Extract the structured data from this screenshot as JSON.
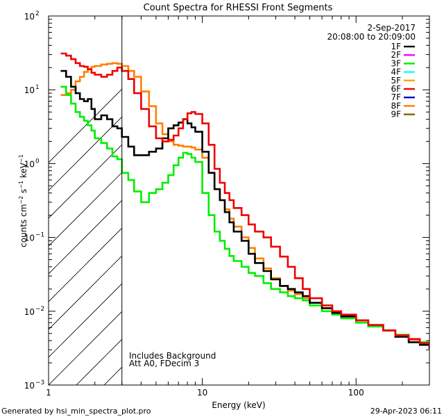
{
  "chart_data": {
    "type": "line",
    "title": "Count Spectra for RHESSI Front Segments",
    "xlabel": "Energy (keV)",
    "ylabel": "counts cm^-2 s^-1 keV^-1",
    "xscale": "log",
    "yscale": "log",
    "xlim": [
      1,
      300
    ],
    "ylim": [
      0.001,
      100
    ],
    "x_ticks_major": [
      {
        "value": 1,
        "label": "1"
      },
      {
        "value": 10,
        "label": "10"
      },
      {
        "value": 100,
        "label": "100"
      }
    ],
    "y_ticks_major": [
      {
        "value": 0.001,
        "label": "10^-3"
      },
      {
        "value": 0.01,
        "label": "10^-2"
      },
      {
        "value": 0.1,
        "label": "10^-1"
      },
      {
        "value": 1,
        "label": "10^0"
      },
      {
        "value": 10,
        "label": "10^1"
      },
      {
        "value": 100,
        "label": "10^2"
      }
    ],
    "date_label": "2-Sep-2017",
    "time_range_label": "20:08:00 to 20:09:00",
    "shaded_region": {
      "x_from": 1,
      "x_to": 3,
      "style": "hatched"
    },
    "annotations": [
      "Includes Background",
      "Att A0, FDecim 3"
    ],
    "legend": [
      {
        "name": "1F",
        "color": "#000000"
      },
      {
        "name": "2F",
        "color": "#ff00ff"
      },
      {
        "name": "3F",
        "color": "#00ee00"
      },
      {
        "name": "4F",
        "color": "#00ffff"
      },
      {
        "name": "5F",
        "color": "#ffa500"
      },
      {
        "name": "6F",
        "color": "#ee0000"
      },
      {
        "name": "7F",
        "color": "#0000cc"
      },
      {
        "name": "8F",
        "color": "#ff7f00"
      },
      {
        "name": "9F",
        "color": "#806000"
      }
    ],
    "series": [
      {
        "name": "1F",
        "color": "#000000",
        "x": [
          1.2,
          1.3,
          1.4,
          1.5,
          1.6,
          1.7,
          1.8,
          1.9,
          2.0,
          2.2,
          2.4,
          2.6,
          2.8,
          3.0,
          3.3,
          3.6,
          4.0,
          4.5,
          5.0,
          5.5,
          6.0,
          6.5,
          7.0,
          7.5,
          8.0,
          8.5,
          9.0,
          10,
          11,
          12,
          13,
          14,
          15,
          16,
          18,
          20,
          22,
          25,
          28,
          32,
          36,
          40,
          45,
          50,
          60,
          70,
          80,
          100,
          120,
          150,
          180,
          220,
          260,
          300
        ],
        "y": [
          18,
          15,
          11,
          9,
          7.5,
          7,
          7.5,
          5.5,
          4,
          4.5,
          4,
          3.2,
          3,
          2.3,
          1.7,
          1.3,
          1.3,
          1.45,
          1.6,
          2.2,
          3,
          3.3,
          3.6,
          4,
          3.5,
          3.1,
          2.7,
          1.45,
          0.75,
          0.45,
          0.32,
          0.22,
          0.16,
          0.12,
          0.09,
          0.06,
          0.045,
          0.035,
          0.027,
          0.022,
          0.02,
          0.018,
          0.016,
          0.013,
          0.011,
          0.0095,
          0.0085,
          0.0075,
          0.0065,
          0.0055,
          0.0045,
          0.0038,
          0.0035,
          0.0031
        ]
      },
      {
        "name": "3F",
        "color": "#00ee00",
        "x": [
          1.2,
          1.3,
          1.4,
          1.5,
          1.6,
          1.7,
          1.8,
          1.9,
          2.0,
          2.2,
          2.4,
          2.6,
          2.8,
          3.0,
          3.3,
          3.6,
          4.0,
          4.5,
          5.0,
          5.5,
          6.0,
          6.5,
          7.0,
          7.5,
          8.0,
          8.5,
          9.0,
          10,
          11,
          12,
          13,
          14,
          15,
          16,
          18,
          20,
          22,
          25,
          28,
          32,
          36,
          40,
          45,
          50,
          60,
          70,
          80,
          100,
          120,
          150,
          180,
          220,
          260,
          300
        ],
        "y": [
          11,
          8.5,
          6.5,
          5,
          4.3,
          3.8,
          3.3,
          2.8,
          2.2,
          1.9,
          1.6,
          1.25,
          1.15,
          0.75,
          0.6,
          0.42,
          0.3,
          0.4,
          0.45,
          0.55,
          0.7,
          0.95,
          1.2,
          1.4,
          1.35,
          1.2,
          1.05,
          0.4,
          0.2,
          0.12,
          0.09,
          0.07,
          0.056,
          0.048,
          0.04,
          0.033,
          0.03,
          0.024,
          0.02,
          0.018,
          0.016,
          0.015,
          0.014,
          0.012,
          0.01,
          0.009,
          0.008,
          0.007,
          0.0062,
          0.0055,
          0.0048,
          0.0042,
          0.0038,
          0.0034
        ]
      },
      {
        "name": "6F",
        "color": "#ee0000",
        "x": [
          1.2,
          1.3,
          1.4,
          1.5,
          1.6,
          1.7,
          1.8,
          1.9,
          2.0,
          2.2,
          2.4,
          2.6,
          2.8,
          3.0,
          3.3,
          3.6,
          4.0,
          4.5,
          5.0,
          5.5,
          6.0,
          6.5,
          7.0,
          7.5,
          8.0,
          8.5,
          9.0,
          10,
          11,
          12,
          13,
          14,
          15,
          16,
          18,
          20,
          22,
          25,
          28,
          32,
          36,
          40,
          45,
          50,
          60,
          70,
          80,
          100,
          120,
          150,
          180,
          220,
          260,
          300
        ],
        "y": [
          31,
          29,
          26,
          23,
          21,
          20.5,
          19,
          17,
          16,
          15,
          16,
          18,
          20,
          18,
          14,
          9,
          5.5,
          3.2,
          2.2,
          2,
          2.1,
          2.4,
          3,
          4,
          4.8,
          5,
          4.7,
          3.5,
          1.8,
          0.85,
          0.55,
          0.4,
          0.32,
          0.25,
          0.2,
          0.15,
          0.12,
          0.1,
          0.075,
          0.055,
          0.04,
          0.028,
          0.02,
          0.015,
          0.012,
          0.01,
          0.009,
          0.0075,
          0.0065,
          0.0055,
          0.0047,
          0.0042,
          0.0037,
          0.0032
        ]
      },
      {
        "name": "8F",
        "color": "#ff7f00",
        "x": [
          1.2,
          1.3,
          1.4,
          1.5,
          1.6,
          1.7,
          1.8,
          1.9,
          2.0,
          2.2,
          2.4,
          2.6,
          2.8,
          3.0,
          3.3,
          3.6,
          4.0,
          4.5,
          5.0,
          5.5,
          6.0,
          6.5,
          7.0,
          7.5,
          8.0,
          8.5,
          9.0,
          10,
          11,
          12,
          13,
          14,
          15,
          16,
          18,
          20,
          22,
          25,
          28,
          32,
          36,
          40,
          45,
          50,
          60,
          70,
          80,
          100,
          120,
          150,
          180,
          220,
          260,
          300
        ],
        "y": [
          8.5,
          9,
          10,
          13,
          15,
          17.5,
          19,
          20.5,
          21,
          22,
          22.5,
          23,
          22.5,
          21,
          18,
          15,
          9.5,
          6,
          3.5,
          2.5,
          2,
          1.8,
          1.75,
          1.7,
          1.7,
          1.65,
          1.55,
          1.2,
          0.75,
          0.45,
          0.32,
          0.24,
          0.18,
          0.14,
          0.1,
          0.072,
          0.052,
          0.038,
          0.028,
          0.022,
          0.019,
          0.017,
          0.015,
          0.013,
          0.011,
          0.0095,
          0.0085,
          0.0075,
          0.0065,
          0.0055,
          0.0047,
          0.0041,
          0.0036,
          0.0031
        ]
      }
    ]
  },
  "footer": {
    "generated_by": "Generated by hsi_min_spectra_plot.pro",
    "timestamp": "29-Apr-2023 06:11"
  }
}
